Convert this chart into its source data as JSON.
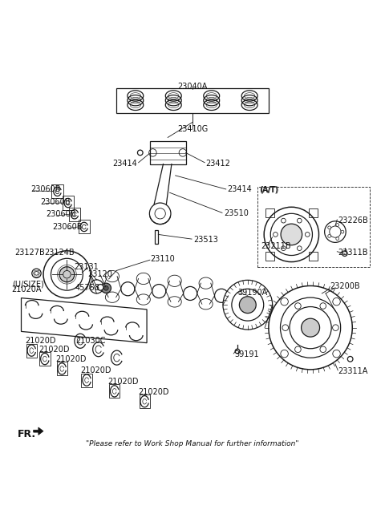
{
  "background_color": "#ffffff",
  "footer_text": "\"Please refer to Work Shop Manual for further information\"",
  "fr_label": "FR.",
  "line_color": "#1a1a1a",
  "label_fontsize": 7.0,
  "labels": {
    "23040A": [
      0.5,
      0.963,
      "center"
    ],
    "23410G": [
      0.5,
      0.845,
      "center"
    ],
    "23414a": [
      0.36,
      0.76,
      "right"
    ],
    "23412": [
      0.53,
      0.76,
      "left"
    ],
    "23414b": [
      0.59,
      0.69,
      "left"
    ],
    "23060B_1": [
      0.085,
      0.695,
      "left"
    ],
    "23060B_2": [
      0.11,
      0.66,
      "left"
    ],
    "23060B_3": [
      0.125,
      0.625,
      "left"
    ],
    "23060B_4": [
      0.145,
      0.592,
      "left"
    ],
    "23510": [
      0.58,
      0.628,
      "left"
    ],
    "23513": [
      0.5,
      0.56,
      "left"
    ],
    "23127B": [
      0.04,
      0.525,
      "left"
    ],
    "23124B": [
      0.115,
      0.525,
      "left"
    ],
    "23110": [
      0.39,
      0.505,
      "left"
    ],
    "23131": [
      0.19,
      0.486,
      "left"
    ],
    "23120": [
      0.225,
      0.468,
      "left"
    ],
    "USIZE": [
      0.038,
      0.442,
      "left"
    ],
    "21020A": [
      0.038,
      0.428,
      "left"
    ],
    "45758": [
      0.195,
      0.432,
      "left"
    ],
    "21030C": [
      0.195,
      0.295,
      "left"
    ],
    "21020D_1": [
      0.042,
      0.272,
      "left"
    ],
    "21020D_2": [
      0.078,
      0.248,
      "left"
    ],
    "21020D_3": [
      0.13,
      0.22,
      "left"
    ],
    "21020D_4": [
      0.2,
      0.19,
      "left"
    ],
    "21020D_5": [
      0.278,
      0.16,
      "left"
    ],
    "21020D_6": [
      0.36,
      0.133,
      "center"
    ],
    "39190A": [
      0.62,
      0.42,
      "left"
    ],
    "39191": [
      0.608,
      0.258,
      "left"
    ],
    "23200B": [
      0.852,
      0.435,
      "left"
    ],
    "23311A": [
      0.882,
      0.215,
      "left"
    ],
    "AT": [
      0.724,
      0.678,
      "left"
    ],
    "23226B": [
      0.882,
      0.612,
      "left"
    ],
    "23211B": [
      0.7,
      0.545,
      "left"
    ],
    "23311B": [
      0.882,
      0.528,
      "left"
    ]
  }
}
